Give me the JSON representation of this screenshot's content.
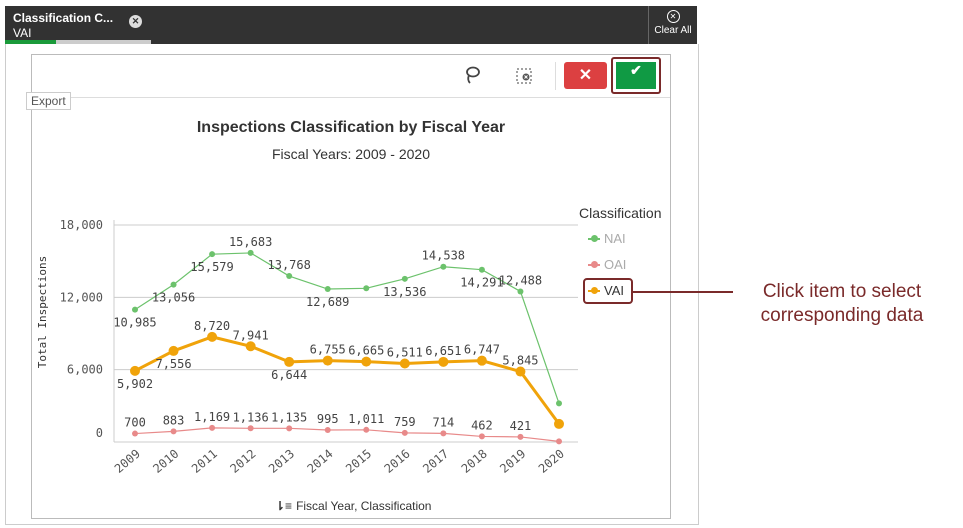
{
  "selection_bar": {
    "tab_title": "Classification C...",
    "tab_value": "VAI",
    "tab_progress": 0.35,
    "clear_all_label": "Clear All"
  },
  "toolbar": {
    "lasso_icon": "lasso-icon",
    "clear_selection_icon": "clear-selection-icon",
    "cancel_icon": "✕",
    "confirm_icon": "✔",
    "export_label": "Export"
  },
  "annotation": {
    "text_line1": "Click item to select",
    "text_line2": "corresponding data",
    "color": "#7a2a2a"
  },
  "chart_data": {
    "type": "line",
    "title": "Inspections Classification by Fiscal Year",
    "subtitle": "Fiscal Years: 2009 - 2020",
    "xlabel": "Fiscal Year,  Classification",
    "ylabel": "Total Inspections",
    "ylim": [
      0,
      18000
    ],
    "yticks": [
      "0",
      "6,000",
      "12,000",
      "18,000"
    ],
    "ytick_values": [
      0,
      6000,
      12000,
      18000
    ],
    "grid": true,
    "legend_title": "Classification",
    "legend_position": "right",
    "categories": [
      "2009",
      "2010",
      "2011",
      "2012",
      "2013",
      "2014",
      "2015",
      "2016",
      "2017",
      "2018",
      "2019",
      "2020"
    ],
    "series": [
      {
        "name": "NAI",
        "color": "#6cc26c",
        "values": [
          10985,
          13056,
          15579,
          15683,
          13768,
          12689,
          12750,
          13536,
          14538,
          14291,
          12488,
          3200
        ],
        "labels": [
          "10,985",
          "13,056",
          "15,579",
          "15,683",
          "13,768",
          "12,689",
          null,
          "13,536",
          "14,538",
          "14,291",
          "12,488",
          null
        ],
        "label_pos": [
          "below",
          "below",
          "below",
          "above",
          "above",
          "below",
          null,
          "below",
          "above",
          "below",
          "above",
          null
        ]
      },
      {
        "name": "OAI",
        "color": "#e88a8a",
        "values": [
          700,
          883,
          1169,
          1136,
          1135,
          995,
          1011,
          759,
          714,
          462,
          421,
          50
        ],
        "labels": [
          "700",
          "883",
          "1,169",
          "1,136",
          "1,135",
          "995",
          "1,011",
          "759",
          "714",
          "462",
          "421",
          null
        ],
        "label_pos": [
          "above",
          "above",
          "above",
          "above",
          "above",
          "above",
          "above",
          "above",
          "above",
          "above",
          "above",
          null
        ]
      },
      {
        "name": "VAI",
        "color": "#f0a30a",
        "selected": true,
        "values": [
          5902,
          7556,
          8720,
          7941,
          6644,
          6755,
          6665,
          6511,
          6651,
          6747,
          5845,
          1500
        ],
        "labels": [
          "5,902",
          "7,556",
          "8,720",
          "7,941",
          "6,644",
          "6,755",
          "6,665",
          "6,511",
          "6,651",
          "6,747",
          "5,845",
          null
        ],
        "label_pos": [
          "below",
          "below",
          "above",
          "above",
          "below",
          "above",
          "above",
          "above",
          "above",
          "above",
          "above",
          null
        ]
      }
    ]
  }
}
